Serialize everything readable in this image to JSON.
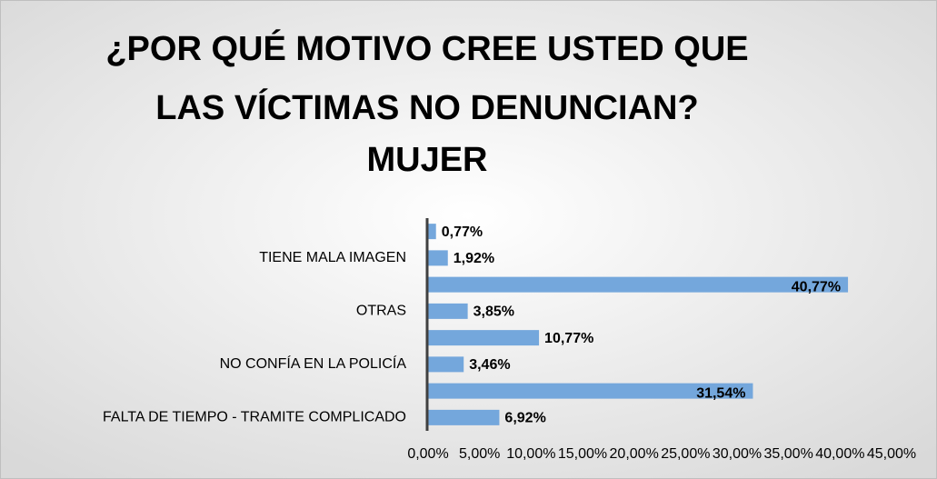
{
  "chart_data": {
    "type": "bar",
    "orientation": "horizontal",
    "title": [
      "¿POR QUÉ MOTIVO CREE USTED QUE",
      "LAS VÍCTIMAS NO DENUNCIAN?",
      "MUJER"
    ],
    "categories": [
      null,
      "TIENE MALA IMAGEN",
      null,
      "OTRAS",
      null,
      "NO CONFÍA EN LA POLICÍA",
      null,
      "FALTA DE TIEMPO - TRAMITE COMPLICADO"
    ],
    "values": [
      0.77,
      1.92,
      40.77,
      3.85,
      10.77,
      3.46,
      31.54,
      6.92
    ],
    "value_labels": [
      "0,77%",
      "1,92%",
      "40,77%",
      "3,85%",
      "10,77%",
      "3,46%",
      "31,54%",
      "6,92%"
    ],
    "color": "#74a7dc",
    "xlim": [
      0,
      45
    ],
    "xticks": [
      {
        "value": 0,
        "label": "0,00%"
      },
      {
        "value": 5,
        "label": "5,00%"
      },
      {
        "value": 10,
        "label": "10,00%"
      },
      {
        "value": 15,
        "label": "15,00%"
      },
      {
        "value": 20,
        "label": "20,00%"
      },
      {
        "value": 25,
        "label": "25,00%"
      },
      {
        "value": 30,
        "label": "30,00%"
      },
      {
        "value": 35,
        "label": "35,00%"
      },
      {
        "value": 40,
        "label": "40,00%"
      },
      {
        "value": 45,
        "label": "45,00%"
      }
    ],
    "grid": false
  }
}
